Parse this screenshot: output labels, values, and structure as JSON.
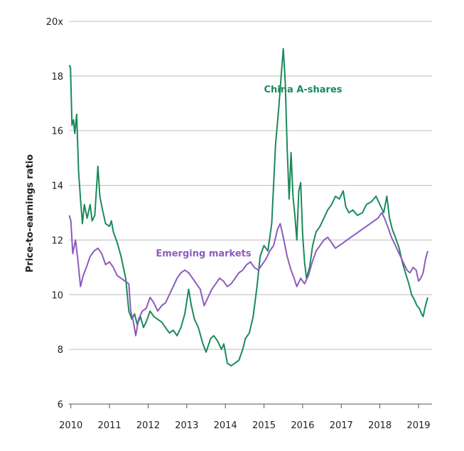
{
  "chart_data": {
    "type": "line",
    "ylabel": "Price-to-earnings ratio",
    "xlabel": "",
    "ylim": [
      6,
      20
    ],
    "xlim": [
      2009.95,
      2019.35
    ],
    "yticks": [
      {
        "value": 6,
        "label": "6"
      },
      {
        "value": 8,
        "label": "8"
      },
      {
        "value": 10,
        "label": "10"
      },
      {
        "value": 12,
        "label": "12"
      },
      {
        "value": 14,
        "label": "14"
      },
      {
        "value": 16,
        "label": "16"
      },
      {
        "value": 18,
        "label": "18"
      },
      {
        "value": 20,
        "label": "20x"
      }
    ],
    "xticks": [
      {
        "value": 2010,
        "label": "2010"
      },
      {
        "value": 2011,
        "label": "2011"
      },
      {
        "value": 2012,
        "label": "2012"
      },
      {
        "value": 2013,
        "label": "2013"
      },
      {
        "value": 2014,
        "label": "2014"
      },
      {
        "value": 2015,
        "label": "2015"
      },
      {
        "value": 2016,
        "label": "2016"
      },
      {
        "value": 2017,
        "label": "2017"
      },
      {
        "value": 2018,
        "label": "2018"
      },
      {
        "value": 2019,
        "label": "2019"
      }
    ],
    "grid": true,
    "series": [
      {
        "name": "China A-shares",
        "color": "#1a8a5a",
        "points": [
          [
            2009.96,
            18.4
          ],
          [
            2009.99,
            18.3
          ],
          [
            2010.03,
            16.2
          ],
          [
            2010.07,
            16.4
          ],
          [
            2010.1,
            15.9
          ],
          [
            2010.15,
            16.6
          ],
          [
            2010.2,
            14.5
          ],
          [
            2010.25,
            13.5
          ],
          [
            2010.3,
            12.6
          ],
          [
            2010.35,
            13.3
          ],
          [
            2010.42,
            12.8
          ],
          [
            2010.5,
            13.3
          ],
          [
            2010.55,
            12.7
          ],
          [
            2010.62,
            12.9
          ],
          [
            2010.7,
            14.7
          ],
          [
            2010.75,
            13.6
          ],
          [
            2010.82,
            13.1
          ],
          [
            2010.9,
            12.6
          ],
          [
            2011.0,
            12.5
          ],
          [
            2011.05,
            12.7
          ],
          [
            2011.1,
            12.3
          ],
          [
            2011.2,
            11.9
          ],
          [
            2011.3,
            11.4
          ],
          [
            2011.42,
            10.6
          ],
          [
            2011.5,
            9.4
          ],
          [
            2011.58,
            9.1
          ],
          [
            2011.65,
            9.3
          ],
          [
            2011.72,
            8.9
          ],
          [
            2011.8,
            9.2
          ],
          [
            2011.88,
            8.8
          ],
          [
            2011.95,
            9.0
          ],
          [
            2012.05,
            9.4
          ],
          [
            2012.15,
            9.2
          ],
          [
            2012.25,
            9.1
          ],
          [
            2012.35,
            9.0
          ],
          [
            2012.45,
            8.8
          ],
          [
            2012.55,
            8.6
          ],
          [
            2012.65,
            8.7
          ],
          [
            2012.75,
            8.5
          ],
          [
            2012.85,
            8.8
          ],
          [
            2012.95,
            9.3
          ],
          [
            2013.05,
            10.2
          ],
          [
            2013.12,
            9.6
          ],
          [
            2013.2,
            9.1
          ],
          [
            2013.3,
            8.8
          ],
          [
            2013.42,
            8.2
          ],
          [
            2013.5,
            7.9
          ],
          [
            2013.62,
            8.4
          ],
          [
            2013.7,
            8.5
          ],
          [
            2013.8,
            8.3
          ],
          [
            2013.9,
            8.0
          ],
          [
            2013.96,
            8.2
          ],
          [
            2014.05,
            7.5
          ],
          [
            2014.15,
            7.4
          ],
          [
            2014.25,
            7.5
          ],
          [
            2014.35,
            7.6
          ],
          [
            2014.45,
            8.0
          ],
          [
            2014.52,
            8.4
          ],
          [
            2014.62,
            8.6
          ],
          [
            2014.72,
            9.2
          ],
          [
            2014.82,
            10.3
          ],
          [
            2014.9,
            11.4
          ],
          [
            2015.0,
            11.8
          ],
          [
            2015.1,
            11.6
          ],
          [
            2015.2,
            12.6
          ],
          [
            2015.3,
            15.5
          ],
          [
            2015.38,
            16.8
          ],
          [
            2015.45,
            18.1
          ],
          [
            2015.5,
            19.0
          ],
          [
            2015.55,
            17.8
          ],
          [
            2015.6,
            15.4
          ],
          [
            2015.65,
            13.5
          ],
          [
            2015.7,
            15.2
          ],
          [
            2015.75,
            13.6
          ],
          [
            2015.8,
            12.9
          ],
          [
            2015.85,
            12.0
          ],
          [
            2015.9,
            13.8
          ],
          [
            2015.95,
            14.1
          ],
          [
            2016.0,
            12.2
          ],
          [
            2016.05,
            11.2
          ],
          [
            2016.1,
            10.6
          ],
          [
            2016.18,
            11.0
          ],
          [
            2016.26,
            11.8
          ],
          [
            2016.35,
            12.3
          ],
          [
            2016.45,
            12.5
          ],
          [
            2016.55,
            12.8
          ],
          [
            2016.65,
            13.1
          ],
          [
            2016.75,
            13.3
          ],
          [
            2016.85,
            13.6
          ],
          [
            2016.95,
            13.5
          ],
          [
            2017.05,
            13.8
          ],
          [
            2017.12,
            13.2
          ],
          [
            2017.2,
            13.0
          ],
          [
            2017.3,
            13.1
          ],
          [
            2017.42,
            12.9
          ],
          [
            2017.55,
            13.0
          ],
          [
            2017.65,
            13.3
          ],
          [
            2017.78,
            13.4
          ],
          [
            2017.9,
            13.6
          ],
          [
            2018.0,
            13.3
          ],
          [
            2018.1,
            13.0
          ],
          [
            2018.18,
            13.6
          ],
          [
            2018.25,
            12.8
          ],
          [
            2018.32,
            12.4
          ],
          [
            2018.4,
            12.1
          ],
          [
            2018.5,
            11.7
          ],
          [
            2018.58,
            11.2
          ],
          [
            2018.66,
            10.8
          ],
          [
            2018.75,
            10.4
          ],
          [
            2018.82,
            10.0
          ],
          [
            2018.9,
            9.8
          ],
          [
            2018.96,
            9.6
          ],
          [
            2019.02,
            9.5
          ],
          [
            2019.08,
            9.3
          ],
          [
            2019.12,
            9.2
          ],
          [
            2019.18,
            9.6
          ],
          [
            2019.24,
            9.9
          ]
        ]
      },
      {
        "name": "Emerging markets",
        "color": "#8d5bbf",
        "points": [
          [
            2009.96,
            12.9
          ],
          [
            2010.0,
            12.7
          ],
          [
            2010.05,
            11.5
          ],
          [
            2010.12,
            12.0
          ],
          [
            2010.18,
            11.3
          ],
          [
            2010.25,
            10.3
          ],
          [
            2010.32,
            10.7
          ],
          [
            2010.4,
            11.0
          ],
          [
            2010.5,
            11.4
          ],
          [
            2010.6,
            11.6
          ],
          [
            2010.7,
            11.7
          ],
          [
            2010.8,
            11.5
          ],
          [
            2010.9,
            11.1
          ],
          [
            2011.0,
            11.2
          ],
          [
            2011.1,
            11.0
          ],
          [
            2011.2,
            10.7
          ],
          [
            2011.3,
            10.6
          ],
          [
            2011.4,
            10.5
          ],
          [
            2011.5,
            10.4
          ],
          [
            2011.55,
            9.4
          ],
          [
            2011.62,
            9.0
          ],
          [
            2011.68,
            8.5
          ],
          [
            2011.75,
            9.1
          ],
          [
            2011.85,
            9.4
          ],
          [
            2011.95,
            9.5
          ],
          [
            2012.05,
            9.9
          ],
          [
            2012.15,
            9.7
          ],
          [
            2012.25,
            9.4
          ],
          [
            2012.35,
            9.6
          ],
          [
            2012.45,
            9.7
          ],
          [
            2012.55,
            10.0
          ],
          [
            2012.65,
            10.3
          ],
          [
            2012.75,
            10.6
          ],
          [
            2012.85,
            10.8
          ],
          [
            2012.95,
            10.9
          ],
          [
            2013.05,
            10.8
          ],
          [
            2013.15,
            10.6
          ],
          [
            2013.25,
            10.4
          ],
          [
            2013.35,
            10.2
          ],
          [
            2013.45,
            9.6
          ],
          [
            2013.55,
            9.9
          ],
          [
            2013.65,
            10.2
          ],
          [
            2013.75,
            10.4
          ],
          [
            2013.85,
            10.6
          ],
          [
            2013.95,
            10.5
          ],
          [
            2014.05,
            10.3
          ],
          [
            2014.15,
            10.4
          ],
          [
            2014.25,
            10.6
          ],
          [
            2014.35,
            10.8
          ],
          [
            2014.45,
            10.9
          ],
          [
            2014.55,
            11.1
          ],
          [
            2014.65,
            11.2
          ],
          [
            2014.75,
            11.0
          ],
          [
            2014.85,
            10.9
          ],
          [
            2014.95,
            11.1
          ],
          [
            2015.05,
            11.3
          ],
          [
            2015.15,
            11.6
          ],
          [
            2015.25,
            11.8
          ],
          [
            2015.35,
            12.4
          ],
          [
            2015.42,
            12.6
          ],
          [
            2015.5,
            12.1
          ],
          [
            2015.6,
            11.4
          ],
          [
            2015.7,
            10.9
          ],
          [
            2015.78,
            10.6
          ],
          [
            2015.85,
            10.3
          ],
          [
            2015.95,
            10.6
          ],
          [
            2016.05,
            10.4
          ],
          [
            2016.15,
            10.7
          ],
          [
            2016.25,
            11.2
          ],
          [
            2016.35,
            11.6
          ],
          [
            2016.45,
            11.8
          ],
          [
            2016.55,
            12.0
          ],
          [
            2016.65,
            12.1
          ],
          [
            2016.75,
            11.9
          ],
          [
            2016.85,
            11.7
          ],
          [
            2016.95,
            11.8
          ],
          [
            2017.05,
            11.9
          ],
          [
            2017.15,
            12.0
          ],
          [
            2017.25,
            12.1
          ],
          [
            2017.35,
            12.2
          ],
          [
            2017.45,
            12.3
          ],
          [
            2017.55,
            12.4
          ],
          [
            2017.65,
            12.5
          ],
          [
            2017.75,
            12.6
          ],
          [
            2017.85,
            12.7
          ],
          [
            2017.95,
            12.8
          ],
          [
            2018.05,
            13.0
          ],
          [
            2018.12,
            12.8
          ],
          [
            2018.2,
            12.5
          ],
          [
            2018.3,
            12.1
          ],
          [
            2018.4,
            11.8
          ],
          [
            2018.5,
            11.5
          ],
          [
            2018.6,
            11.2
          ],
          [
            2018.7,
            10.9
          ],
          [
            2018.78,
            10.8
          ],
          [
            2018.86,
            11.0
          ],
          [
            2018.94,
            10.9
          ],
          [
            2019.0,
            10.5
          ],
          [
            2019.06,
            10.6
          ],
          [
            2019.12,
            10.8
          ],
          [
            2019.18,
            11.3
          ],
          [
            2019.24,
            11.6
          ]
        ]
      }
    ],
    "annotations": [
      {
        "text": "China A-shares",
        "series": 0,
        "x": 2015.0,
        "y": 17.4
      },
      {
        "text": "Emerging markets",
        "series": 1,
        "x": 2012.2,
        "y": 11.4
      }
    ]
  }
}
